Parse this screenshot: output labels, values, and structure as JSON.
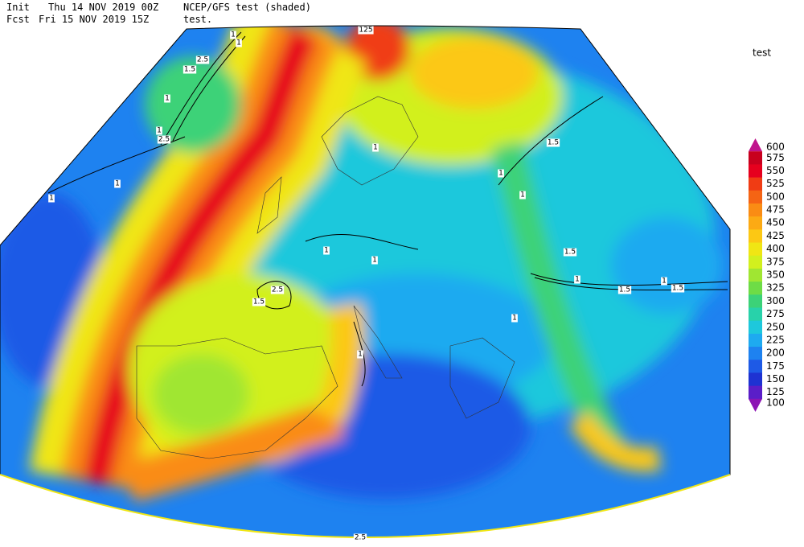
{
  "header": {
    "line1": [
      "Init",
      "Thu 14 NOV 2019 00Z",
      "NCEP/GFS test (shaded)"
    ],
    "line2": [
      "Fcst",
      "Fri 15 NOV 2019 15Z",
      "test."
    ]
  },
  "colorbar": {
    "title": "test",
    "levels": [
      600,
      575,
      550,
      525,
      500,
      475,
      450,
      425,
      400,
      375,
      350,
      325,
      300,
      275,
      250,
      225,
      200,
      175,
      150,
      125,
      100
    ],
    "colors": [
      "#c0148c",
      "#c8001e",
      "#e6001e",
      "#f03c14",
      "#f56414",
      "#fa8c14",
      "#fcaa14",
      "#fcc814",
      "#f0e614",
      "#d2f01e",
      "#a0e632",
      "#6edc46",
      "#3cd278",
      "#28d2aa",
      "#1ec8dc",
      "#1eaaf0",
      "#1e82f0",
      "#1e5ae6",
      "#1e32d2",
      "#5a1ec8",
      "#8c14b4"
    ]
  },
  "contour_labels": [
    "125",
    "1",
    "1",
    "2.5",
    "1.5",
    "1",
    "1",
    "2.5",
    "1",
    "1",
    "1",
    "1.5",
    "1",
    "1",
    "1.5",
    "1",
    "1.5",
    "2.5",
    "1.5",
    "1",
    "1",
    "1.5",
    "1",
    "1",
    "1",
    "2.5"
  ]
}
